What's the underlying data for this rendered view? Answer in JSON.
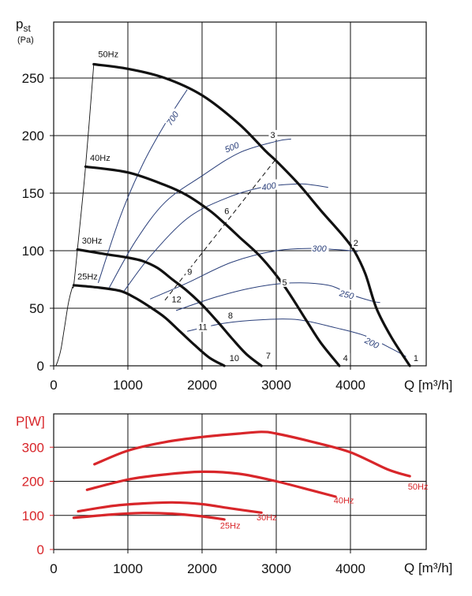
{
  "chart_data": [
    {
      "type": "line",
      "ylabel_main": "p",
      "ylabel_sub": "st",
      "ylabel_unit": "(Pa)",
      "xlabel": "Q [m³/h]",
      "xlim": [
        0,
        5000
      ],
      "ylim": [
        0,
        270
      ],
      "xticks": [
        "0",
        "1000",
        "2000",
        "3000",
        "4000"
      ],
      "yticks": [
        "0",
        "50",
        "100",
        "150",
        "200",
        "250"
      ],
      "grid": true,
      "series": [
        {
          "name": "50Hz",
          "x": [
            540,
            1000,
            1500,
            2000,
            2500,
            2850,
            3000,
            3300,
            3600,
            3900,
            4050,
            4200,
            4350,
            4550,
            4800
          ],
          "y": [
            262,
            258,
            250,
            235,
            210,
            187,
            178,
            158,
            135,
            113,
            100,
            80,
            50,
            25,
            0
          ]
        },
        {
          "name": "40Hz",
          "x": [
            430,
            1000,
            1500,
            1800,
            2100,
            2300,
            2500,
            2800,
            3100,
            3400,
            3600,
            3850
          ],
          "y": [
            173,
            168,
            157,
            148,
            135,
            124,
            112,
            94,
            70,
            40,
            20,
            0
          ]
        },
        {
          "name": "30Hz",
          "x": [
            320,
            700,
            1000,
            1200,
            1400,
            1600,
            1800,
            2000,
            2200,
            2400,
            2600,
            2800
          ],
          "y": [
            101,
            97,
            94,
            91,
            85,
            75,
            65,
            53,
            39,
            24,
            10,
            0
          ]
        },
        {
          "name": "25Hz",
          "x": [
            270,
            600,
            900,
            1100,
            1300,
            1500,
            1700,
            1900,
            2100,
            2300
          ],
          "y": [
            70,
            68,
            65,
            59,
            51,
            42,
            30,
            18,
            7,
            0
          ]
        }
      ],
      "start_line": {
        "x": [
          30,
          60,
          100,
          150,
          200,
          250,
          270,
          320,
          430,
          540
        ],
        "y": [
          0,
          5,
          15,
          35,
          55,
          68,
          70,
          101,
          173,
          262
        ]
      },
      "efficiency_curves": [
        {
          "name": "700",
          "x": [
            600,
            900,
            1200,
            1500,
            1800
          ],
          "y": [
            72,
            130,
            175,
            210,
            240
          ]
        },
        {
          "name": "500",
          "x": [
            750,
            1100,
            1500,
            2000,
            2500,
            3000,
            3200
          ],
          "y": [
            68,
            108,
            142,
            165,
            185,
            195,
            197
          ]
        },
        {
          "name": "400",
          "x": [
            950,
            1300,
            1800,
            2300,
            2800,
            3300,
            3500,
            3700
          ],
          "y": [
            65,
            95,
            128,
            145,
            155,
            158,
            157,
            155
          ]
        },
        {
          "name": "300",
          "x": [
            1300,
            1800,
            2400,
            3000,
            3500,
            3800,
            4000,
            4100
          ],
          "y": [
            58,
            72,
            90,
            100,
            102,
            101,
            100,
            99
          ]
        },
        {
          "name": "250",
          "x": [
            1650,
            2200,
            2700,
            3200,
            3700,
            4000,
            4300,
            4400
          ],
          "y": [
            48,
            60,
            68,
            72,
            70,
            62,
            56,
            55
          ]
        },
        {
          "name": "200",
          "x": [
            1800,
            2300,
            2800,
            3300,
            3800,
            4200,
            4550,
            4750
          ],
          "y": [
            30,
            37,
            40,
            40,
            33,
            26,
            15,
            8
          ]
        }
      ],
      "dashed_line": {
        "x": [
          1500,
          3000
        ],
        "y": [
          57,
          180
        ]
      },
      "points": [
        {
          "label": "1",
          "x": 4850,
          "y": 4
        },
        {
          "label": "2",
          "x": 4040,
          "y": 104
        },
        {
          "label": "3",
          "x": 2920,
          "y": 198
        },
        {
          "label": "4",
          "x": 3900,
          "y": 4
        },
        {
          "label": "5",
          "x": 3080,
          "y": 70
        },
        {
          "label": "6",
          "x": 2300,
          "y": 132
        },
        {
          "label": "7",
          "x": 2860,
          "y": 6
        },
        {
          "label": "8",
          "x": 2350,
          "y": 41
        },
        {
          "label": "9",
          "x": 1800,
          "y": 79
        },
        {
          "label": "10",
          "x": 2370,
          "y": 4
        },
        {
          "label": "11",
          "x": 1950,
          "y": 31
        },
        {
          "label": "12",
          "x": 1590,
          "y": 55
        }
      ],
      "freq_labels": [
        {
          "label": "50Hz",
          "x": 600,
          "y": 268
        },
        {
          "label": "40Hz",
          "x": 490,
          "y": 178
        },
        {
          "label": "30Hz",
          "x": 380,
          "y": 106
        },
        {
          "label": "25Hz",
          "x": 320,
          "y": 75
        }
      ]
    },
    {
      "type": "line",
      "ylabel": "P[W]",
      "xlabel": "Q [m³/h]",
      "xlim": [
        0,
        5000
      ],
      "ylim": [
        0,
        400
      ],
      "xticks": [
        "0",
        "1000",
        "2000",
        "3000",
        "4000"
      ],
      "yticks": [
        "0",
        "100",
        "200",
        "300"
      ],
      "grid": true,
      "color": "#d8262a",
      "series": [
        {
          "name": "50Hz",
          "x": [
            550,
            1000,
            1500,
            2000,
            2500,
            2800,
            3000,
            3500,
            4000,
            4500,
            4800
          ],
          "y": [
            250,
            290,
            315,
            330,
            340,
            345,
            340,
            315,
            285,
            235,
            215
          ]
        },
        {
          "name": "40Hz",
          "x": [
            450,
            1000,
            1500,
            2000,
            2500,
            3000,
            3500,
            3800
          ],
          "y": [
            175,
            205,
            220,
            228,
            222,
            200,
            172,
            155
          ]
        },
        {
          "name": "30Hz",
          "x": [
            330,
            800,
            1200,
            1600,
            2000,
            2400,
            2800
          ],
          "y": [
            112,
            128,
            135,
            138,
            133,
            120,
            108
          ]
        },
        {
          "name": "25Hz",
          "x": [
            270,
            800,
            1200,
            1600,
            2000,
            2300
          ],
          "y": [
            93,
            103,
            107,
            105,
            97,
            88
          ]
        }
      ],
      "series_labels": [
        {
          "label": "50Hz",
          "x": 4880,
          "y": 185
        },
        {
          "label": "40Hz",
          "x": 3880,
          "y": 145
        },
        {
          "label": "30Hz",
          "x": 2840,
          "y": 95
        },
        {
          "label": "25Hz",
          "x": 2350,
          "y": 70
        }
      ]
    }
  ]
}
